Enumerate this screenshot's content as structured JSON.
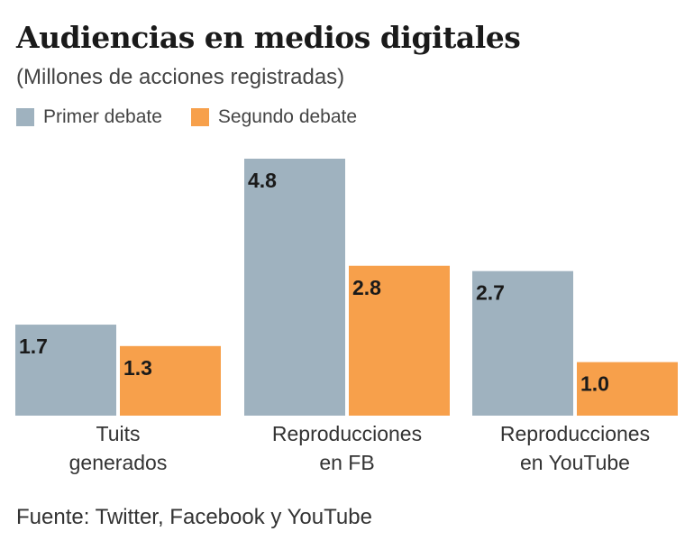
{
  "chart_data": {
    "type": "bar",
    "title": "Audiencias en medios digitales",
    "subtitle": "(Millones de acciones registradas)",
    "categories": [
      [
        "Tuits",
        "generados"
      ],
      [
        "Reproducciones",
        "en FB"
      ],
      [
        "Reproducciones",
        "en YouTube"
      ]
    ],
    "series": [
      {
        "name": "Primer debate",
        "values": [
          1.7,
          4.8,
          2.7
        ],
        "color": "#9fb2bf"
      },
      {
        "name": "Segundo debate",
        "values": [
          1.3,
          2.8,
          1.0
        ],
        "color": "#f7a04b"
      }
    ],
    "value_labels": [
      [
        "1.7",
        "4.8",
        "2.7"
      ],
      [
        "1.3",
        "2.8",
        "1.0"
      ]
    ],
    "ylim": [
      0,
      4.8
    ],
    "grid": false,
    "legend_position": "top-left",
    "source": "Fuente: Twitter, Facebook y YouTube"
  }
}
